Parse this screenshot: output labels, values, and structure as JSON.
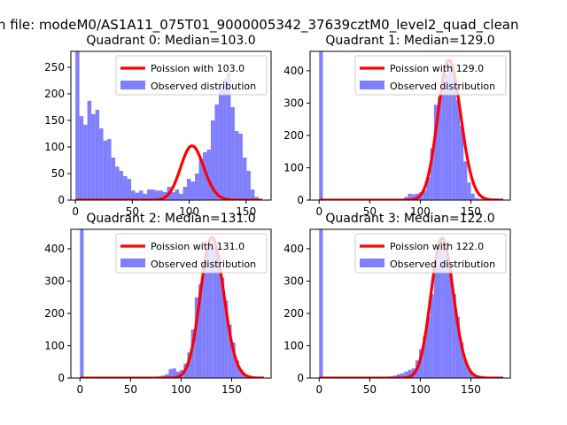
{
  "figure": {
    "suptitle": "n file: modeM0/AS1A11_075T01_9000005342_37639cztM0_level2_quad_clean"
  },
  "colors": {
    "model_line": "#ff0000",
    "observed_fill": "#8080ff",
    "axis": "#000000"
  },
  "chart_data": [
    {
      "type": "bar",
      "title": "Quadrant 0: Median=103.0",
      "legend": {
        "placement": "top-right",
        "line_label": "Poission with 103.0",
        "hist_label": "Observed distribution"
      },
      "xlim": [
        -4,
        172
      ],
      "ylim": [
        0,
        280
      ],
      "xticks": [
        0,
        50,
        100,
        150
      ],
      "yticks": [
        0,
        50,
        100,
        150,
        200,
        250
      ],
      "bin_width": 3.5,
      "hist": {
        "bin_start": [
          0,
          3.5,
          7,
          10.5,
          14,
          17.5,
          21,
          24.5,
          28,
          31.5,
          35,
          38.5,
          42,
          45.5,
          49,
          52.5,
          56,
          59.5,
          63,
          66.5,
          70,
          73.5,
          77,
          80.5,
          84,
          87.5,
          91,
          94.5,
          98,
          101.5,
          105,
          108.5,
          112,
          115.5,
          119,
          122.5,
          126,
          129.5,
          133,
          136.5,
          140,
          143.5,
          147,
          150.5,
          154,
          157.5,
          161,
          164.5
        ],
        "counts": [
          280,
          158,
          142,
          187,
          162,
          170,
          135,
          112,
          115,
          80,
          63,
          55,
          45,
          40,
          18,
          14,
          18,
          12,
          20,
          20,
          18,
          18,
          15,
          25,
          15,
          20,
          12,
          25,
          40,
          35,
          50,
          78,
          90,
          95,
          150,
          180,
          215,
          228,
          240,
          175,
          130,
          125,
          80,
          55,
          20,
          6,
          2,
          0
        ]
      },
      "model": {
        "mean": 103.0,
        "peak": 102,
        "x_range": [
          0,
          164
        ]
      }
    },
    {
      "type": "bar",
      "title": "Quadrant 1: Median=129.0",
      "legend": {
        "placement": "top-right",
        "line_label": "Poission with 129.0",
        "hist_label": "Observed distribution"
      },
      "xlim": [
        -9,
        189
      ],
      "ylim": [
        0,
        460
      ],
      "xticks": [
        0,
        50,
        100,
        150
      ],
      "yticks": [
        0,
        100,
        200,
        300,
        400
      ],
      "bin_width": 3.66,
      "hist": {
        "bin_start": [
          0,
          3.66,
          84.2,
          87.8,
          91.5,
          95.2,
          98.8,
          102.5,
          106.1,
          109.8,
          113.5,
          117.1,
          120.8,
          124.4,
          128.1,
          131.8,
          135.4,
          139.1,
          142.7,
          146.4,
          150.1,
          153.7,
          157.4,
          161.0,
          164.7
        ],
        "counts": [
          460,
          2,
          10,
          20,
          18,
          20,
          25,
          30,
          70,
          160,
          295,
          320,
          360,
          390,
          410,
          395,
          310,
          230,
          120,
          55,
          20,
          6,
          4,
          3,
          2
        ]
      },
      "model": {
        "mean": 129.0,
        "peak": 432,
        "x_range": [
          0,
          182
        ]
      }
    },
    {
      "type": "bar",
      "title": "Quadrant 2: Median=131.0",
      "legend": {
        "placement": "top-right",
        "line_label": "Poission with 131.0",
        "hist_label": "Observed distribution"
      },
      "xlim": [
        -9,
        189
      ],
      "ylim": [
        0,
        460
      ],
      "xticks": [
        0,
        50,
        100,
        150
      ],
      "yticks": [
        0,
        100,
        200,
        300,
        400
      ],
      "bin_width": 3.66,
      "hist": {
        "bin_start": [
          0,
          3.66,
          73.2,
          76.9,
          80.5,
          84.2,
          87.8,
          91.5,
          95.2,
          98.8,
          102.5,
          106.1,
          109.8,
          113.5,
          117.1,
          120.8,
          124.4,
          128.1,
          131.8,
          135.4,
          139.1,
          142.7,
          146.4,
          150.1,
          153.7,
          157.4,
          161.0,
          164.7,
          168.3,
          172.0
        ],
        "counts": [
          460,
          2,
          3,
          5,
          8,
          12,
          28,
          30,
          20,
          25,
          45,
          80,
          150,
          250,
          290,
          360,
          400,
          420,
          405,
          380,
          310,
          240,
          165,
          110,
          55,
          25,
          12,
          4,
          2,
          1
        ]
      },
      "model": {
        "mean": 131.0,
        "peak": 435,
        "x_range": [
          0,
          182
        ]
      }
    },
    {
      "type": "bar",
      "title": "Quadrant 3: Median=122.0",
      "legend": {
        "placement": "top-right",
        "line_label": "Poission with 122.0",
        "hist_label": "Observed distribution"
      },
      "xlim": [
        -9,
        189
      ],
      "ylim": [
        0,
        460
      ],
      "xticks": [
        0,
        50,
        100,
        150
      ],
      "yticks": [
        0,
        100,
        200,
        300,
        400
      ],
      "bin_width": 3.66,
      "hist": {
        "bin_start": [
          0,
          3.66,
          65.9,
          69.5,
          73.2,
          76.9,
          80.5,
          84.2,
          87.8,
          91.5,
          95.2,
          98.8,
          102.5,
          106.1,
          109.8,
          113.5,
          117.1,
          120.8,
          124.4,
          128.1,
          131.8,
          135.4,
          139.1,
          142.7,
          146.4,
          150.1,
          153.7,
          157.4,
          161.0
        ],
        "counts": [
          460,
          2,
          3,
          5,
          8,
          12,
          15,
          20,
          25,
          30,
          55,
          90,
          130,
          190,
          260,
          355,
          400,
          420,
          380,
          355,
          260,
          190,
          110,
          55,
          25,
          12,
          5,
          3,
          1
        ]
      },
      "model": {
        "mean": 122.0,
        "peak": 432,
        "x_range": [
          0,
          182
        ]
      }
    }
  ]
}
